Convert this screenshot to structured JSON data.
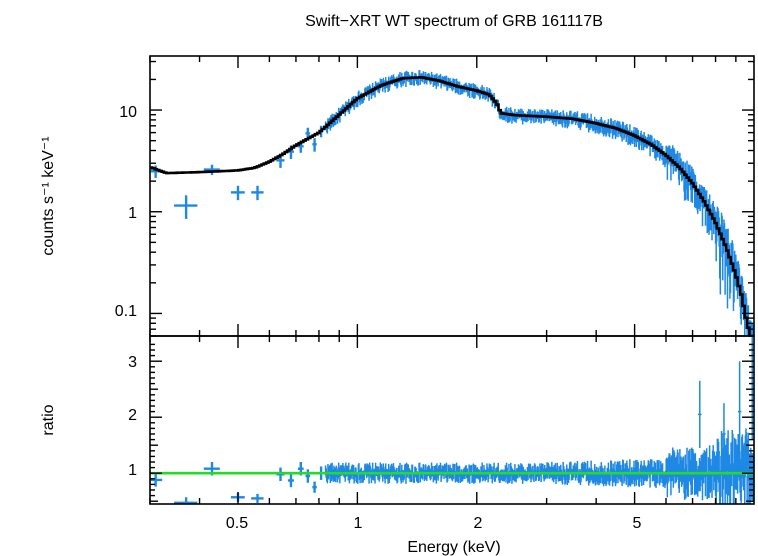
{
  "chart_data": [
    {
      "type": "scatter",
      "panel": "spectrum",
      "title": "Swift−XRT WT spectrum of GRB 161117B",
      "xlabel": "Energy (keV)",
      "ylabel": "counts s⁻¹ keV⁻¹",
      "x_scale": "log",
      "y_scale": "log",
      "xlim": [
        0.3,
        10
      ],
      "ylim": [
        0.06,
        34
      ],
      "grid": false,
      "yticks": [
        0.1,
        1,
        10
      ],
      "ytick_labels": [
        "0.1",
        "1",
        "10"
      ],
      "data_color": "#1e88e5",
      "model_color": "#000000",
      "low_energy_points": [
        {
          "e": 0.31,
          "ex": 0.012,
          "y": 2.5,
          "ey": 0.35
        },
        {
          "e": 0.37,
          "ex": 0.025,
          "y": 1.15,
          "ey": 0.3
        },
        {
          "e": 0.43,
          "ex": 0.02,
          "y": 2.6,
          "ey": 0.3
        },
        {
          "e": 0.5,
          "ex": 0.02,
          "y": 1.55,
          "ey": 0.25
        },
        {
          "e": 0.56,
          "ex": 0.02,
          "y": 1.55,
          "ey": 0.25
        },
        {
          "e": 0.64,
          "ex": 0.015,
          "y": 3.2,
          "ey": 0.5
        },
        {
          "e": 0.68,
          "ex": 0.012,
          "y": 3.9,
          "ey": 0.6
        },
        {
          "e": 0.72,
          "ex": 0.012,
          "y": 4.4,
          "ey": 0.6
        },
        {
          "e": 0.75,
          "ex": 0.01,
          "y": 5.9,
          "ey": 0.8
        },
        {
          "e": 0.78,
          "ex": 0.01,
          "y": 4.6,
          "ey": 0.7
        },
        {
          "e": 0.81,
          "ex": 0.01,
          "y": 6.2,
          "ey": 0.8
        }
      ],
      "model_curve": [
        [
          0.3,
          2.75
        ],
        [
          0.33,
          2.4
        ],
        [
          0.4,
          2.45
        ],
        [
          0.5,
          2.55
        ],
        [
          0.55,
          2.7
        ],
        [
          0.6,
          3.1
        ],
        [
          0.65,
          3.7
        ],
        [
          0.7,
          4.5
        ],
        [
          0.8,
          6.0
        ],
        [
          0.9,
          9.0
        ],
        [
          1.0,
          13.0
        ],
        [
          1.15,
          17.5
        ],
        [
          1.3,
          20.5
        ],
        [
          1.45,
          21.0
        ],
        [
          1.6,
          19.5
        ],
        [
          1.8,
          17.0
        ],
        [
          2.0,
          15.5
        ],
        [
          2.15,
          14.2
        ],
        [
          2.25,
          11.5
        ],
        [
          2.3,
          9.3
        ],
        [
          2.5,
          8.9
        ],
        [
          3.0,
          8.6
        ],
        [
          3.5,
          8.2
        ],
        [
          4.0,
          7.4
        ],
        [
          4.5,
          6.6
        ],
        [
          5.0,
          5.6
        ],
        [
          5.5,
          4.6
        ],
        [
          6.0,
          3.6
        ],
        [
          6.5,
          2.7
        ],
        [
          7.0,
          1.9
        ],
        [
          7.5,
          1.25
        ],
        [
          8.0,
          0.78
        ],
        [
          8.5,
          0.45
        ],
        [
          9.0,
          0.24
        ],
        [
          9.3,
          0.15
        ],
        [
          9.6,
          0.08
        ],
        [
          9.8,
          0.06
        ]
      ]
    },
    {
      "type": "scatter",
      "panel": "ratio",
      "xlabel": "Energy (keV)",
      "ylabel": "ratio",
      "x_scale": "log",
      "y_scale": "linear",
      "xlim": [
        0.3,
        10
      ],
      "ylim": [
        0.45,
        3.45
      ],
      "reference_line": 1,
      "reference_color": "#22dd22",
      "yticks": [
        1,
        2,
        3
      ],
      "ytick_labels": [
        "1",
        "2",
        "3"
      ],
      "xticks": [
        0.5,
        1,
        2,
        5
      ],
      "xtick_labels": [
        "0.5",
        "1",
        "2",
        "5"
      ],
      "low_energy_points": [
        {
          "e": 0.31,
          "ex": 0.012,
          "y": 0.88,
          "ey": 0.12
        },
        {
          "e": 0.37,
          "ex": 0.025,
          "y": 0.47,
          "ey": 0.1
        },
        {
          "e": 0.43,
          "ex": 0.02,
          "y": 1.08,
          "ey": 0.12
        },
        {
          "e": 0.5,
          "ex": 0.02,
          "y": 0.57,
          "ey": 0.08
        },
        {
          "e": 0.56,
          "ex": 0.02,
          "y": 0.55,
          "ey": 0.08
        },
        {
          "e": 0.64,
          "ex": 0.015,
          "y": 0.98,
          "ey": 0.12
        },
        {
          "e": 0.68,
          "ex": 0.012,
          "y": 0.87,
          "ey": 0.12
        },
        {
          "e": 0.72,
          "ex": 0.012,
          "y": 1.08,
          "ey": 0.12
        },
        {
          "e": 0.75,
          "ex": 0.01,
          "y": 0.95,
          "ey": 0.12
        },
        {
          "e": 0.78,
          "ex": 0.01,
          "y": 0.75,
          "ey": 0.1
        },
        {
          "e": 0.81,
          "ex": 0.01,
          "y": 1.0,
          "ey": 0.12
        }
      ]
    }
  ]
}
